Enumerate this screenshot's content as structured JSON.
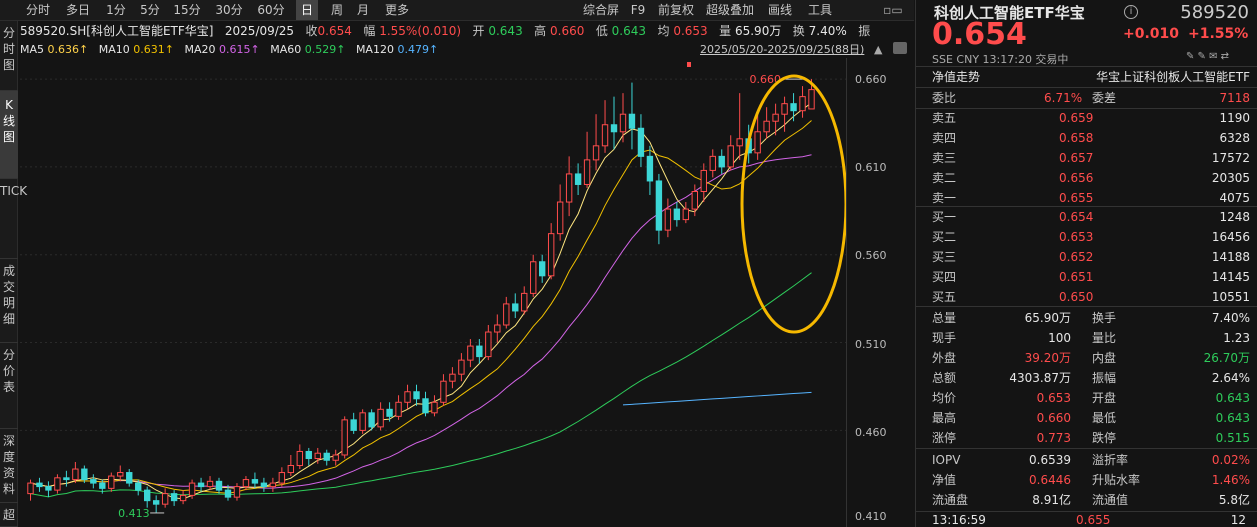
{
  "left_tabs": [
    "分时图",
    "K线图",
    "TICK",
    "成交明细",
    "分价表",
    "深度资料",
    "超"
  ],
  "periods": [
    "分时",
    "多日",
    "1分",
    "5分",
    "15分",
    "30分",
    "60分",
    "日",
    "周",
    "月",
    "更多"
  ],
  "toolbar_right": [
    "综合屏",
    "F9",
    "前复权",
    "超级叠加",
    "画线",
    "工具"
  ],
  "info": {
    "name": "589520.SH[科创人工智能ETF华宝]",
    "date": "2025/09/25",
    "close_label": "收",
    "close": "0.654",
    "amp_label": "幅",
    "amp": "1.55%(0.010)",
    "open_label": "开",
    "open": "0.643",
    "high_label": "高",
    "high": "0.660",
    "low_label": "低",
    "low": "0.643",
    "avg_label": "均",
    "avg": "0.653",
    "vol_label": "量",
    "vol": "65.90万",
    "turn_label": "换",
    "turn": "7.40%",
    "ex_label": "振"
  },
  "ma": {
    "ma5": "MA5",
    "ma5v": "0.636↑",
    "ma10": "MA10",
    "ma10v": "0.631↑",
    "ma20": "MA20",
    "ma20v": "0.615↑",
    "ma60": "MA60",
    "ma60v": "0.529↑",
    "ma120": "MA120",
    "ma120v": "0.479↑"
  },
  "range_text": "2025/05/20-2025/09/25(88日)",
  "chart_data": {
    "type": "candlestick",
    "ylim": [
      0.405,
      0.672
    ],
    "y_ticks": [
      "0.660",
      "0.610",
      "0.560",
      "0.510",
      "0.460",
      "0.410"
    ],
    "high_label": "0.660",
    "low_label": "0.413",
    "candles": [
      [
        0.424,
        0.43,
        0.42,
        0.432
      ],
      [
        0.43,
        0.428,
        0.425,
        0.433
      ],
      [
        0.428,
        0.426,
        0.422,
        0.431
      ],
      [
        0.426,
        0.433,
        0.424,
        0.435
      ],
      [
        0.433,
        0.432,
        0.428,
        0.437
      ],
      [
        0.432,
        0.438,
        0.43,
        0.442
      ],
      [
        0.438,
        0.432,
        0.43,
        0.44
      ],
      [
        0.432,
        0.43,
        0.427,
        0.435
      ],
      [
        0.43,
        0.427,
        0.424,
        0.432
      ],
      [
        0.427,
        0.434,
        0.425,
        0.436
      ],
      [
        0.434,
        0.436,
        0.431,
        0.44
      ],
      [
        0.436,
        0.43,
        0.428,
        0.438
      ],
      [
        0.43,
        0.426,
        0.423,
        0.432
      ],
      [
        0.426,
        0.42,
        0.416,
        0.428
      ],
      [
        0.42,
        0.418,
        0.413,
        0.423
      ],
      [
        0.418,
        0.424,
        0.416,
        0.427
      ],
      [
        0.424,
        0.42,
        0.417,
        0.426
      ],
      [
        0.42,
        0.423,
        0.418,
        0.426
      ],
      [
        0.423,
        0.43,
        0.421,
        0.432
      ],
      [
        0.43,
        0.428,
        0.425,
        0.433
      ],
      [
        0.428,
        0.431,
        0.426,
        0.434
      ],
      [
        0.431,
        0.426,
        0.424,
        0.433
      ],
      [
        0.426,
        0.422,
        0.42,
        0.429
      ],
      [
        0.422,
        0.428,
        0.42,
        0.43
      ],
      [
        0.428,
        0.432,
        0.426,
        0.434
      ],
      [
        0.432,
        0.43,
        0.427,
        0.436
      ],
      [
        0.43,
        0.428,
        0.425,
        0.433
      ],
      [
        0.428,
        0.43,
        0.425,
        0.433
      ],
      [
        0.43,
        0.436,
        0.428,
        0.439
      ],
      [
        0.436,
        0.44,
        0.434,
        0.446
      ],
      [
        0.44,
        0.448,
        0.438,
        0.452
      ],
      [
        0.448,
        0.444,
        0.44,
        0.45
      ],
      [
        0.444,
        0.447,
        0.441,
        0.45
      ],
      [
        0.447,
        0.443,
        0.44,
        0.449
      ],
      [
        0.443,
        0.446,
        0.44,
        0.449
      ],
      [
        0.446,
        0.466,
        0.444,
        0.468
      ],
      [
        0.466,
        0.46,
        0.458,
        0.47
      ],
      [
        0.46,
        0.47,
        0.458,
        0.472
      ],
      [
        0.47,
        0.462,
        0.46,
        0.472
      ],
      [
        0.462,
        0.472,
        0.46,
        0.476
      ],
      [
        0.472,
        0.468,
        0.465,
        0.476
      ],
      [
        0.468,
        0.476,
        0.466,
        0.48
      ],
      [
        0.476,
        0.482,
        0.472,
        0.486
      ],
      [
        0.482,
        0.478,
        0.474,
        0.486
      ],
      [
        0.478,
        0.47,
        0.468,
        0.482
      ],
      [
        0.47,
        0.476,
        0.468,
        0.48
      ],
      [
        0.476,
        0.488,
        0.474,
        0.492
      ],
      [
        0.488,
        0.492,
        0.484,
        0.496
      ],
      [
        0.492,
        0.5,
        0.488,
        0.504
      ],
      [
        0.5,
        0.508,
        0.496,
        0.512
      ],
      [
        0.508,
        0.502,
        0.498,
        0.512
      ],
      [
        0.502,
        0.516,
        0.5,
        0.52
      ],
      [
        0.516,
        0.52,
        0.51,
        0.526
      ],
      [
        0.52,
        0.532,
        0.518,
        0.536
      ],
      [
        0.532,
        0.528,
        0.524,
        0.538
      ],
      [
        0.528,
        0.538,
        0.526,
        0.542
      ],
      [
        0.538,
        0.556,
        0.536,
        0.56
      ],
      [
        0.556,
        0.548,
        0.544,
        0.56
      ],
      [
        0.548,
        0.572,
        0.546,
        0.578
      ],
      [
        0.572,
        0.59,
        0.568,
        0.6
      ],
      [
        0.59,
        0.606,
        0.582,
        0.616
      ],
      [
        0.606,
        0.6,
        0.594,
        0.612
      ],
      [
        0.6,
        0.614,
        0.598,
        0.63
      ],
      [
        0.614,
        0.622,
        0.608,
        0.64
      ],
      [
        0.622,
        0.634,
        0.618,
        0.648
      ],
      [
        0.634,
        0.63,
        0.62,
        0.65
      ],
      [
        0.63,
        0.64,
        0.624,
        0.652
      ],
      [
        0.64,
        0.632,
        0.62,
        0.658
      ],
      [
        0.632,
        0.616,
        0.61,
        0.64
      ],
      [
        0.616,
        0.602,
        0.594,
        0.622
      ],
      [
        0.602,
        0.574,
        0.566,
        0.606
      ],
      [
        0.574,
        0.586,
        0.57,
        0.592
      ],
      [
        0.586,
        0.58,
        0.576,
        0.59
      ],
      [
        0.58,
        0.586,
        0.578,
        0.59
      ],
      [
        0.586,
        0.596,
        0.582,
        0.6
      ],
      [
        0.596,
        0.608,
        0.59,
        0.612
      ],
      [
        0.608,
        0.616,
        0.604,
        0.62
      ],
      [
        0.616,
        0.61,
        0.606,
        0.62
      ],
      [
        0.61,
        0.622,
        0.608,
        0.628
      ],
      [
        0.622,
        0.626,
        0.614,
        0.652
      ],
      [
        0.626,
        0.618,
        0.612,
        0.634
      ],
      [
        0.618,
        0.63,
        0.614,
        0.64
      ],
      [
        0.63,
        0.636,
        0.626,
        0.644
      ],
      [
        0.636,
        0.64,
        0.628,
        0.646
      ],
      [
        0.64,
        0.646,
        0.63,
        0.65
      ],
      [
        0.646,
        0.642,
        0.636,
        0.652
      ],
      [
        0.642,
        0.65,
        0.638,
        0.656
      ],
      [
        0.643,
        0.654,
        0.643,
        0.66
      ]
    ]
  },
  "right": {
    "title": "科创人工智能ETF华宝",
    "code": "589520",
    "price": "0.654",
    "chg": "+0.010",
    "pct": "+1.55%",
    "sub": "SSE  CNY  13:17:20  交易中",
    "nav_label": "净值走势",
    "index_name": "华宝上证科创板人工智能ETF",
    "wb_label": "委比",
    "wb": "6.71%",
    "wc_label": "委差",
    "wc": "7118",
    "asks": [
      [
        "卖五",
        "0.659",
        "1190"
      ],
      [
        "卖四",
        "0.658",
        "6328"
      ],
      [
        "卖三",
        "0.657",
        "17572"
      ],
      [
        "卖二",
        "0.656",
        "20305"
      ],
      [
        "卖一",
        "0.655",
        "4075"
      ]
    ],
    "bids": [
      [
        "买一",
        "0.654",
        "1248"
      ],
      [
        "买二",
        "0.653",
        "16456"
      ],
      [
        "买三",
        "0.652",
        "14188"
      ],
      [
        "买四",
        "0.651",
        "14145"
      ],
      [
        "买五",
        "0.650",
        "10551"
      ]
    ],
    "stats": [
      [
        "总量",
        "65.90万",
        "换手",
        "7.40%"
      ],
      [
        "现手",
        "100",
        "量比",
        "1.23"
      ],
      [
        "外盘",
        "39.20万",
        "内盘",
        "26.70万"
      ],
      [
        "总额",
        "4303.87万",
        "振幅",
        "2.64%"
      ],
      [
        "均价",
        "0.653",
        "开盘",
        "0.643"
      ],
      [
        "最高",
        "0.660",
        "最低",
        "0.643"
      ],
      [
        "涨停",
        "0.773",
        "跌停",
        "0.515"
      ]
    ],
    "stats2": [
      [
        "IOPV",
        "0.6539",
        "溢折率",
        "0.02%"
      ],
      [
        "净值",
        "0.6446",
        "升贴水率",
        "1.46%"
      ],
      [
        "流通盘",
        "8.91亿",
        "流通值",
        "5.8亿"
      ]
    ],
    "last_time": "13:16:59",
    "last_price": "0.655",
    "last_vol": "12"
  }
}
